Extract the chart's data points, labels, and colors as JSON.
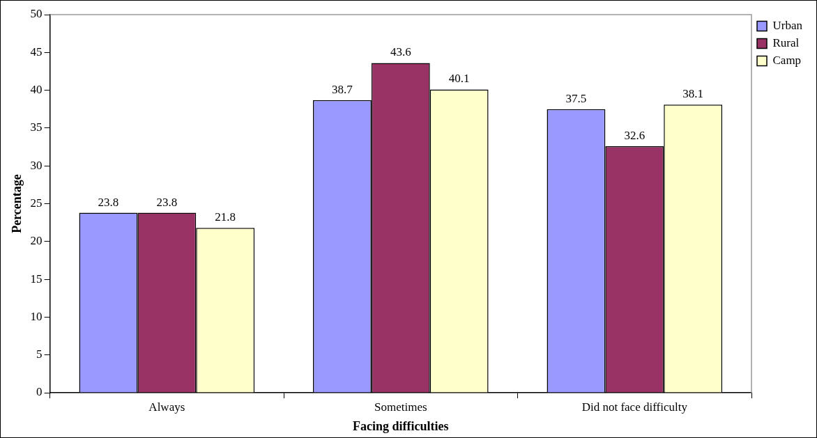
{
  "chart_data": {
    "type": "bar",
    "xlabel": "Facing difficulties",
    "ylabel": "Percentage",
    "categories": [
      "Always",
      "Sometimes",
      "Did not face difficulty"
    ],
    "series": [
      {
        "name": "Urban",
        "color": "#9999ff",
        "values": [
          23.8,
          38.7,
          37.5
        ]
      },
      {
        "name": "Rural",
        "color": "#993366",
        "values": [
          23.8,
          43.6,
          32.6
        ]
      },
      {
        "name": "Camp",
        "color": "#ffffcc",
        "values": [
          21.8,
          40.1,
          38.1
        ]
      }
    ],
    "ylim": [
      0,
      50
    ],
    "yticks": [
      0,
      5,
      10,
      15,
      20,
      25,
      30,
      35,
      40,
      45,
      50
    ],
    "grid": false,
    "legend": "top right",
    "data_labels": true
  }
}
